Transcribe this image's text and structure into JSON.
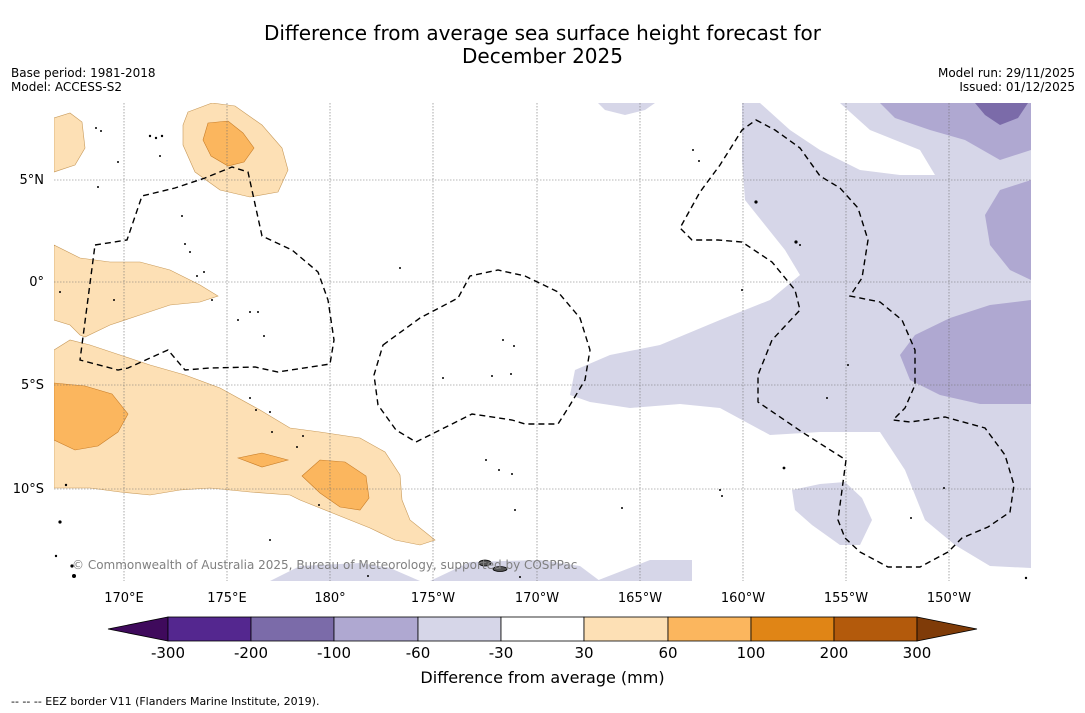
{
  "title": {
    "line1": "Difference from average sea surface height forecast for",
    "line2": "December 2025"
  },
  "meta": {
    "base_period": "Base period: 1981-2018",
    "model": "Model: ACCESS-S2",
    "model_run": "Model run: 29/11/2025",
    "issued": "Issued: 01/12/2025"
  },
  "map": {
    "lat_labels": [
      "5°N",
      "0°",
      "5°S",
      "10°S"
    ],
    "lon_labels": [
      "170°E",
      "175°E",
      "180°",
      "175°W",
      "170°W",
      "165°W",
      "160°W",
      "155°W",
      "150°W"
    ],
    "copyright": "© Commonwealth of Australia 2025, Bureau of Meteorology, supported by COSPPac",
    "colors": {
      "neg_30_60": "#d6d6e8",
      "neg_60_100": "#afa8d1",
      "neg_100_200": "#7b6ba9",
      "pos_30_60": "#fde0b5",
      "pos_60_100": "#fbb65e"
    }
  },
  "colorbar": {
    "bins": [
      {
        "color": "#3f0a5c"
      },
      {
        "color": "#54278f"
      },
      {
        "color": "#7b6ba9"
      },
      {
        "color": "#afa8d1"
      },
      {
        "color": "#d6d6e8"
      },
      {
        "color": "#ffffff"
      },
      {
        "color": "#fde0b5"
      },
      {
        "color": "#fbb65e"
      },
      {
        "color": "#e08516"
      },
      {
        "color": "#b35a0c"
      },
      {
        "color": "#7f3b08"
      }
    ],
    "ticks": [
      "-300",
      "-200",
      "-100",
      "-60",
      "-30",
      "30",
      "60",
      "100",
      "200",
      "300"
    ],
    "label": "Difference from average (mm)"
  },
  "footer": "--  --  -- EEZ border V11 (Flanders Marine Institute, 2019)."
}
